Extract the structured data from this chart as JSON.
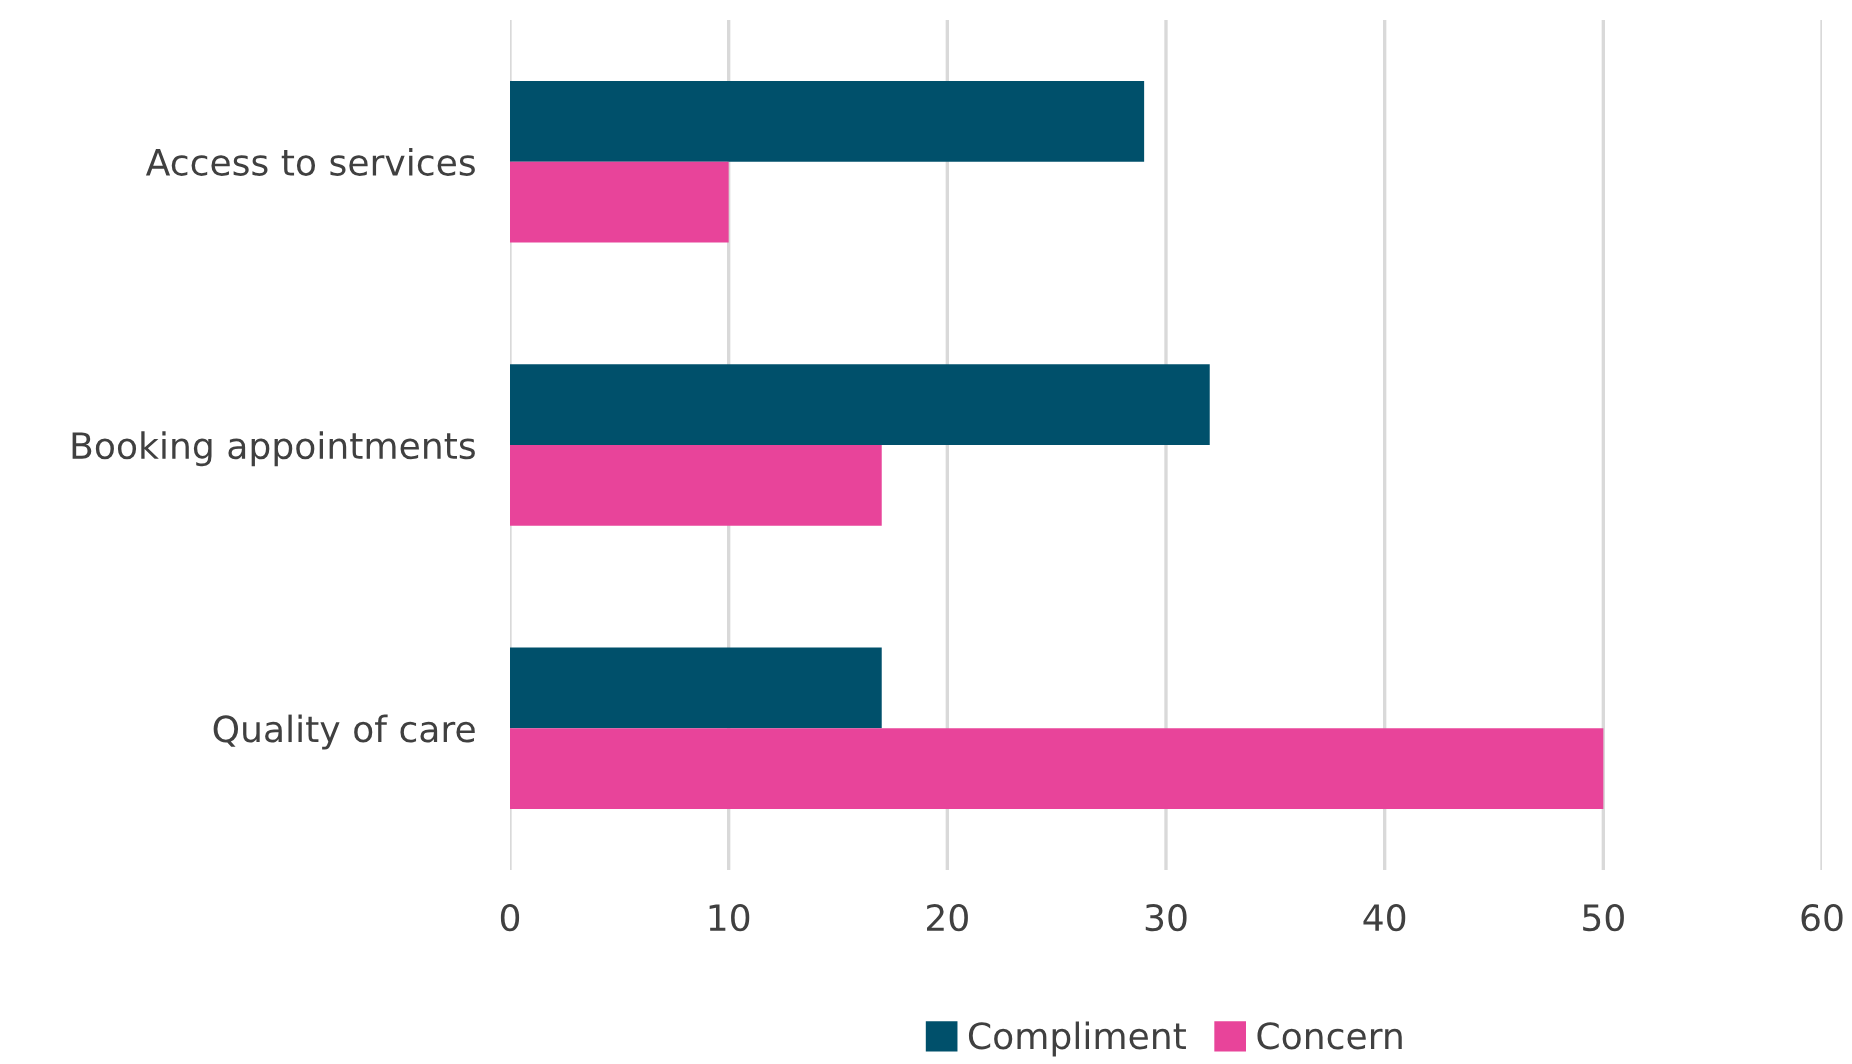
{
  "chart_data": {
    "type": "bar",
    "orientation": "horizontal",
    "categories": [
      "Access to services",
      "Booking appointments",
      "Quality of care"
    ],
    "series": [
      {
        "name": "Compliment",
        "color": "#00506b",
        "values": [
          29,
          32,
          17
        ]
      },
      {
        "name": "Concern",
        "color": "#e8449a",
        "values": [
          10,
          17,
          50
        ]
      }
    ],
    "xlim": [
      0,
      60
    ],
    "xticks": [
      0,
      10,
      20,
      30,
      40,
      50,
      60
    ],
    "grid": "x",
    "legend": "bottom"
  }
}
